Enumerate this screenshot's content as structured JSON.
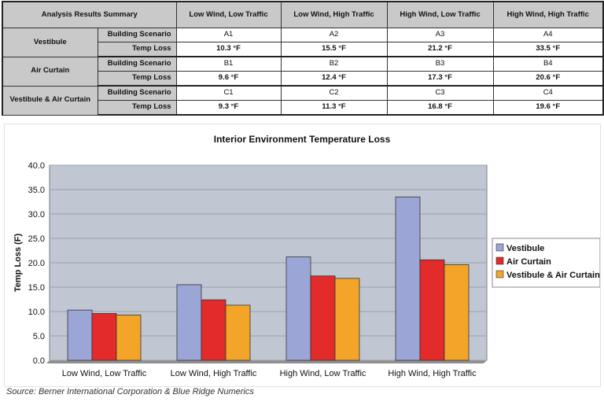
{
  "table": {
    "header": [
      "Analysis Results Summary",
      "Low Wind, Low Traffic",
      "Low Wind, High Traffic",
      "High Wind, Low Traffic",
      "High Wind, High Traffic"
    ],
    "groups": [
      {
        "name": "Vestibule",
        "rows": [
          {
            "label": "Building Scenario",
            "cells": [
              "A1",
              "A2",
              "A3",
              "A4"
            ]
          },
          {
            "label": "Temp Loss",
            "cells": [
              "10.3 °F",
              "15.5 °F",
              "21.2 °F",
              "33.5 °F"
            ]
          }
        ]
      },
      {
        "name": "Air Curtain",
        "rows": [
          {
            "label": "Building Scenario",
            "cells": [
              "B1",
              "B2",
              "B3",
              "B4"
            ]
          },
          {
            "label": "Temp Loss",
            "cells": [
              "9.6 °F",
              "12.4 °F",
              "17.3 °F",
              "20.6 °F"
            ]
          }
        ]
      },
      {
        "name": "Vestibule & Air Curtain",
        "rows": [
          {
            "label": "Building Scenario",
            "cells": [
              "C1",
              "C2",
              "C3",
              "C4"
            ]
          },
          {
            "label": "Temp Loss",
            "cells": [
              "9.3 °F",
              "11.3 °F",
              "16.8 °F",
              "19.6 °F"
            ]
          }
        ]
      }
    ]
  },
  "chart_data": {
    "type": "bar",
    "title": "Interior Environment Temperature Loss",
    "xlabel": "",
    "ylabel": "Temp Loss (F)",
    "ylim": [
      0,
      40
    ],
    "yticks": [
      "0.0",
      "5.0",
      "10.0",
      "15.0",
      "20.0",
      "25.0",
      "30.0",
      "35.0",
      "40.0"
    ],
    "grid": true,
    "legend_position": "right",
    "plot_background": "#c0c7d3",
    "categories": [
      "Low Wind, Low Traffic",
      "Low Wind, High Traffic",
      "High Wind, Low Traffic",
      "High Wind, High Traffic"
    ],
    "series": [
      {
        "name": "Vestibule",
        "color": "#9ba5d6",
        "values": [
          10.3,
          15.5,
          21.2,
          33.5
        ]
      },
      {
        "name": "Air Curtain",
        "color": "#e32b2b",
        "values": [
          9.6,
          12.4,
          17.3,
          20.6
        ]
      },
      {
        "name": "Vestibule & Air Curtain",
        "color": "#f2a529",
        "values": [
          9.3,
          11.3,
          16.8,
          19.6
        ]
      }
    ]
  },
  "source": "Source: Berner International Corporation & Blue Ridge Numerics"
}
